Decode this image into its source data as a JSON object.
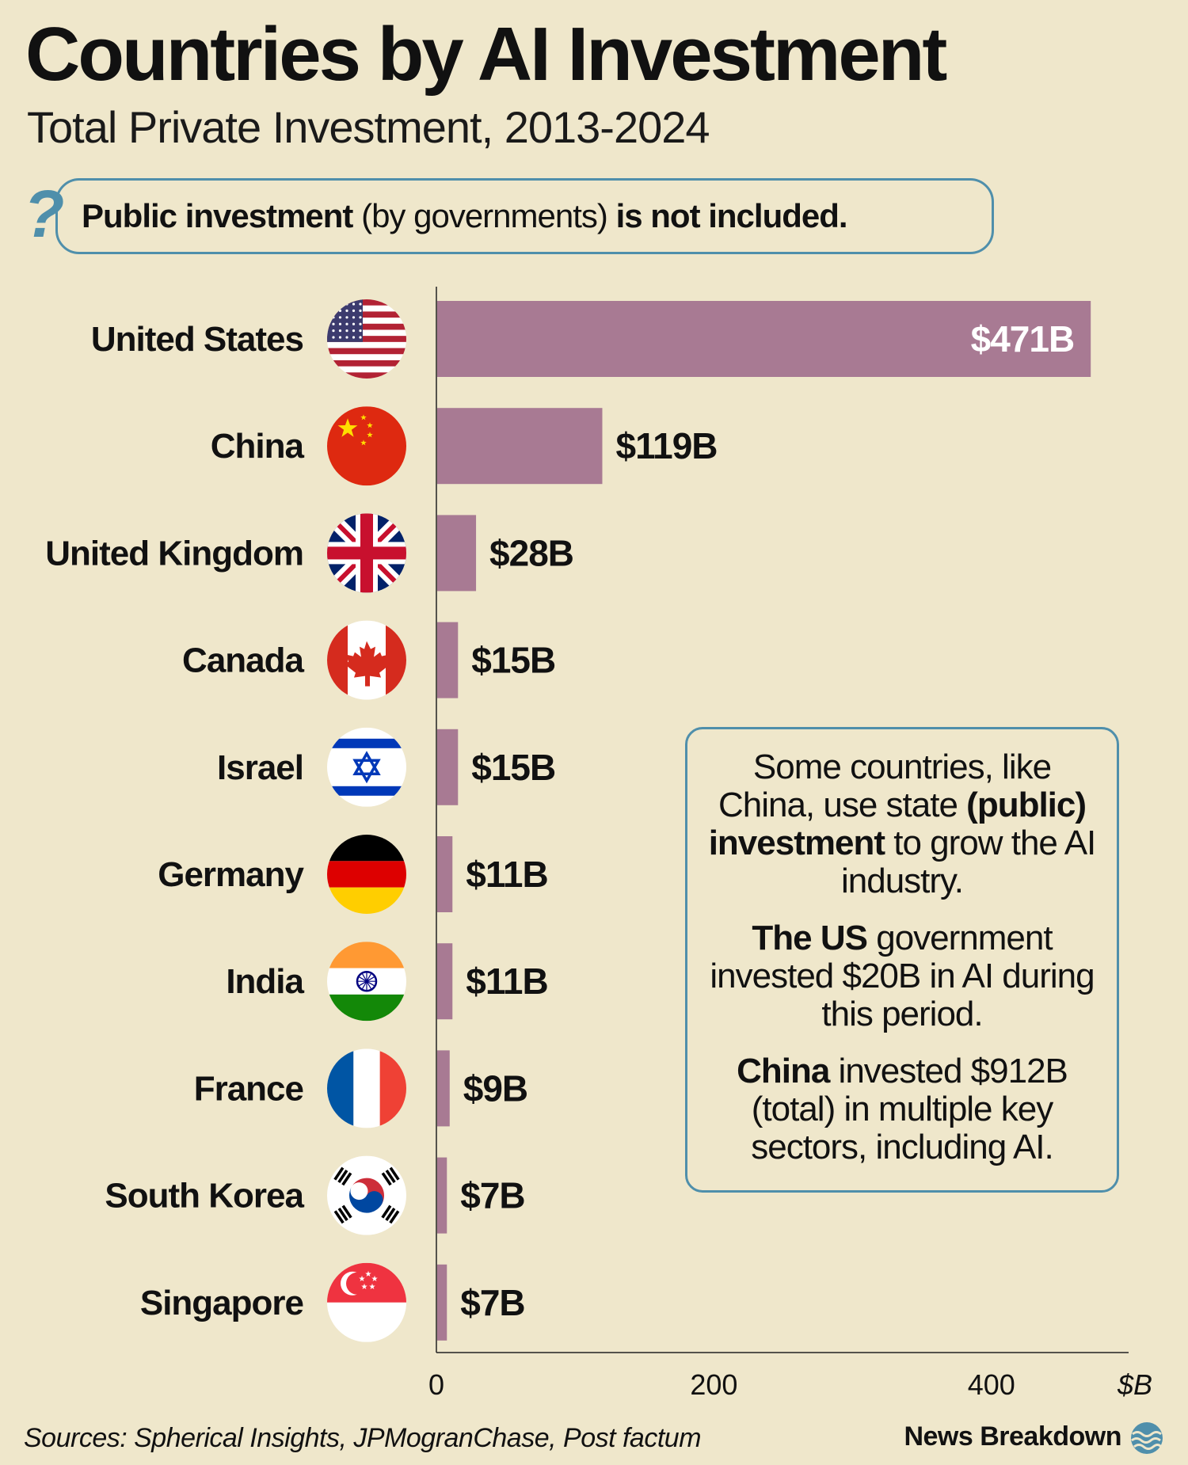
{
  "header": {
    "title": "Countries by AI Investment",
    "subtitle": "Total Private Investment, 2013-2024"
  },
  "note": {
    "icon": "question-mark-icon",
    "bold1": "Public investment",
    "normal": " (by governments) ",
    "bold2": "is not included."
  },
  "callout": {
    "p1_a": "Some countries, like China, use state ",
    "p1_b": "(public) investment",
    "p1_c": " to grow the AI industry.",
    "p2_a": "The US",
    "p2_b": " government invested $20B in AI during this period.",
    "p3_a": "China",
    "p3_b": " invested $912B (total) in multiple key sectors, including AI."
  },
  "footer": {
    "sources": "Sources: Spherical Insights, JPMogranChase, Post factum",
    "brand": "News Breakdown",
    "brand_icon": "waves-globe-icon"
  },
  "colors": {
    "bar": "#a87a93",
    "accent": "#4f8fab",
    "background": "#efe7cb"
  },
  "chart_data": {
    "type": "bar",
    "orientation": "horizontal",
    "title": "Countries by AI Investment",
    "subtitle": "Total Private Investment, 2013-2024",
    "categories": [
      "United States",
      "China",
      "United Kingdom",
      "Canada",
      "Israel",
      "Germany",
      "India",
      "France",
      "South Korea",
      "Singapore"
    ],
    "values": [
      471,
      119,
      28,
      15,
      15,
      11,
      11,
      9,
      7,
      7
    ],
    "value_labels": [
      "$471B",
      "$119B",
      "$28B",
      "$15B",
      "$15B",
      "$11B",
      "$11B",
      "$9B",
      "$7B",
      "$7B"
    ],
    "flag_icons": [
      "us-flag-icon",
      "china-flag-icon",
      "uk-flag-icon",
      "canada-flag-icon",
      "israel-flag-icon",
      "germany-flag-icon",
      "india-flag-icon",
      "france-flag-icon",
      "south-korea-flag-icon",
      "singapore-flag-icon"
    ],
    "x_ticks": [
      0,
      200,
      400
    ],
    "x_unit_label": "$B",
    "xlim": [
      0,
      500
    ],
    "grid": false
  }
}
